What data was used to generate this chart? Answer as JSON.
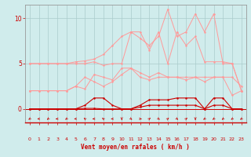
{
  "x": [
    0,
    1,
    2,
    3,
    4,
    5,
    6,
    7,
    8,
    9,
    10,
    11,
    12,
    13,
    14,
    15,
    16,
    17,
    18,
    19,
    20,
    21,
    22,
    23
  ],
  "s1_y": [
    5.0,
    5.0,
    5.0,
    5.0,
    5.0,
    5.2,
    5.3,
    5.5,
    6.0,
    7.0,
    8.0,
    8.5,
    7.8,
    7.0,
    8.0,
    11.0,
    8.0,
    8.5,
    10.5,
    8.5,
    10.5,
    5.0,
    5.0,
    2.0
  ],
  "s2_y": [
    5.0,
    5.0,
    5.0,
    5.0,
    5.0,
    5.0,
    5.0,
    5.2,
    4.8,
    5.0,
    5.0,
    8.5,
    8.5,
    6.5,
    8.5,
    5.0,
    8.5,
    7.0,
    8.0,
    5.2,
    5.2,
    5.2,
    5.0,
    2.0
  ],
  "s3_y": [
    2.0,
    2.0,
    2.0,
    2.0,
    2.0,
    2.5,
    2.2,
    3.8,
    3.5,
    3.2,
    4.5,
    4.5,
    4.0,
    3.5,
    4.0,
    3.5,
    3.5,
    3.5,
    3.5,
    3.5,
    3.5,
    3.5,
    1.5,
    2.0
  ],
  "s4_y": [
    2.0,
    2.0,
    2.0,
    2.0,
    2.0,
    2.5,
    3.5,
    3.0,
    2.5,
    3.0,
    3.8,
    4.5,
    3.5,
    3.2,
    3.5,
    3.5,
    3.5,
    3.2,
    3.5,
    3.0,
    3.5,
    3.5,
    3.5,
    2.5
  ],
  "s5_y": [
    0.0,
    0.0,
    0.0,
    0.0,
    0.0,
    0.0,
    0.05,
    0.05,
    0.0,
    0.0,
    0.0,
    0.0,
    0.2,
    0.4,
    0.4,
    0.4,
    0.4,
    0.4,
    0.4,
    0.0,
    0.4,
    0.4,
    0.0,
    0.0
  ],
  "s6_y": [
    0.0,
    0.0,
    0.0,
    0.0,
    0.0,
    0.0,
    0.4,
    1.2,
    1.2,
    0.4,
    0.0,
    0.0,
    0.4,
    1.0,
    1.0,
    1.0,
    1.2,
    1.2,
    1.2,
    0.0,
    1.2,
    1.2,
    0.0,
    0.0
  ],
  "light_pink": "#ff9999",
  "dark_red": "#cc0000",
  "bg_color": "#d0ecec",
  "grid_color": "#aacccc",
  "xlabel": "Vent moyen/en rafales ( km/h )",
  "yticks": [
    0,
    5,
    10
  ],
  "ylim": [
    -1.5,
    11.5
  ],
  "xlim": [
    -0.5,
    23.5
  ],
  "wind_dirs": [
    225,
    270,
    225,
    270,
    225,
    270,
    315,
    270,
    315,
    270,
    180,
    135,
    90,
    45,
    135,
    45,
    135,
    45,
    180,
    225,
    225,
    225,
    225,
    225
  ]
}
